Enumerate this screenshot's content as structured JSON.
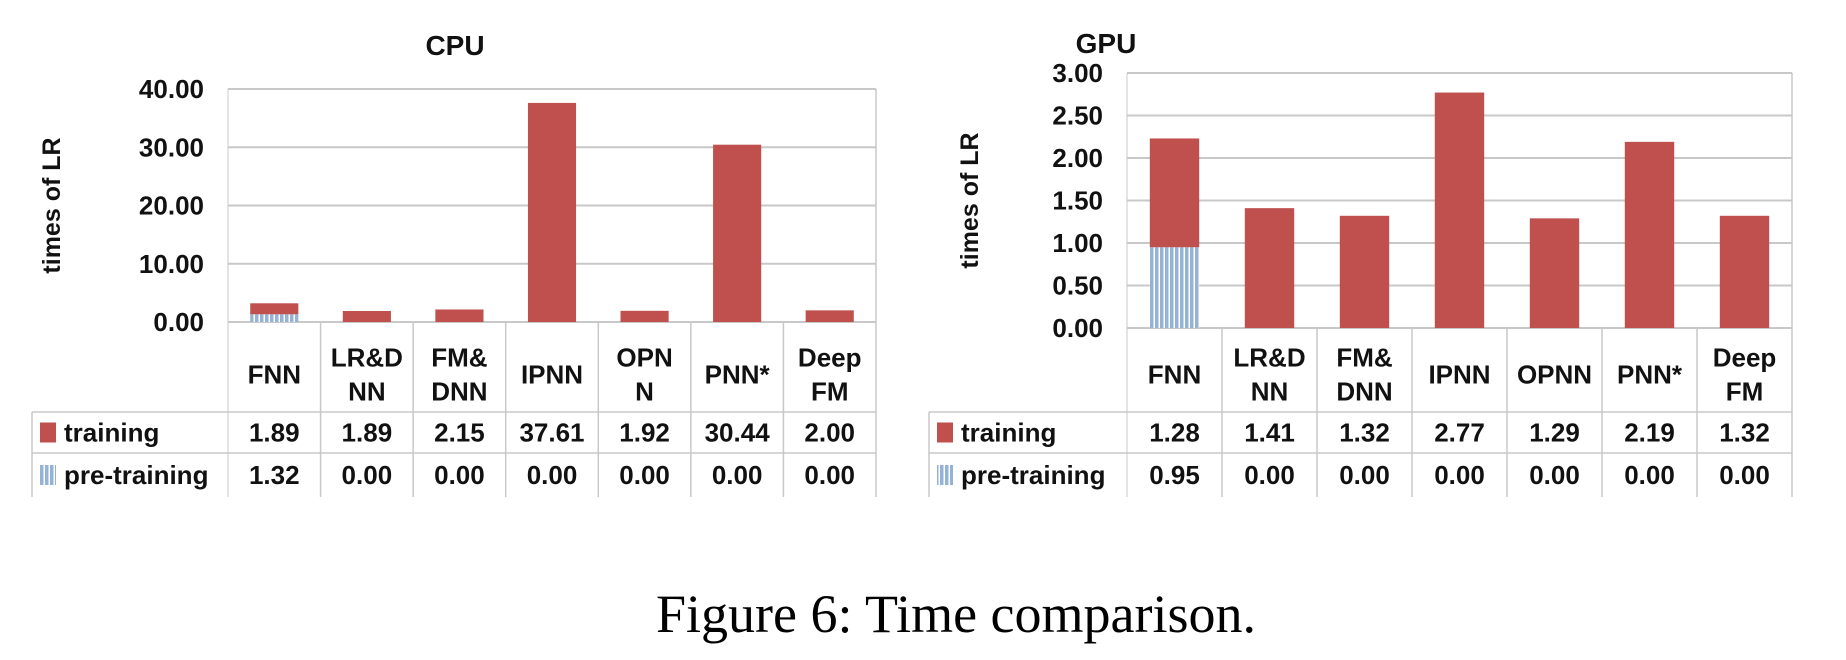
{
  "caption": "Figure 6: Time comparison.",
  "colors": {
    "training": "#C0504D",
    "pre_training": "#95B3D7",
    "grid": "#C8C8C8"
  },
  "chart_data": [
    {
      "type": "bar",
      "stacked": true,
      "title": "CPU",
      "ylabel": "times of LR",
      "ylim": [
        0,
        40
      ],
      "yticks": [
        "0.00",
        "10.00",
        "20.00",
        "30.00",
        "40.00"
      ],
      "grid": true,
      "legend": "data-table",
      "categories": [
        [
          "FNN"
        ],
        [
          "LR&D",
          "NN"
        ],
        [
          "FM&",
          "DNN"
        ],
        [
          "IPNN"
        ],
        [
          "OPN",
          "N"
        ],
        [
          "PNN*"
        ],
        [
          "Deep",
          "FM"
        ]
      ],
      "series": [
        {
          "name": "training",
          "values": [
            1.89,
            1.89,
            2.15,
            37.61,
            1.92,
            30.44,
            2.0
          ],
          "labels": [
            "1.89",
            "1.89",
            "2.15",
            "37.61",
            "1.92",
            "30.44",
            "2.00"
          ]
        },
        {
          "name": "pre-training",
          "values": [
            1.32,
            0,
            0,
            0,
            0,
            0,
            0
          ],
          "labels": [
            "1.32",
            "0.00",
            "0.00",
            "0.00",
            "0.00",
            "0.00",
            "0.00"
          ]
        }
      ]
    },
    {
      "type": "bar",
      "stacked": true,
      "title": "GPU",
      "ylabel": "times of LR",
      "ylim": [
        0,
        3
      ],
      "yticks": [
        "0.00",
        "0.50",
        "1.00",
        "1.50",
        "2.00",
        "2.50",
        "3.00"
      ],
      "grid": true,
      "legend": "data-table",
      "categories": [
        [
          "FNN"
        ],
        [
          "LR&D",
          "NN"
        ],
        [
          "FM&",
          "DNN"
        ],
        [
          "IPNN"
        ],
        [
          "OPNN"
        ],
        [
          "PNN*"
        ],
        [
          "Deep",
          "FM"
        ]
      ],
      "series": [
        {
          "name": "training",
          "values": [
            1.28,
            1.41,
            1.32,
            2.77,
            1.29,
            2.19,
            1.32
          ],
          "labels": [
            "1.28",
            "1.41",
            "1.32",
            "2.77",
            "1.29",
            "2.19",
            "1.32"
          ]
        },
        {
          "name": "pre-training",
          "values": [
            0.95,
            0,
            0,
            0,
            0,
            0,
            0
          ],
          "labels": [
            "0.95",
            "0.00",
            "0.00",
            "0.00",
            "0.00",
            "0.00",
            "0.00"
          ]
        }
      ]
    }
  ]
}
